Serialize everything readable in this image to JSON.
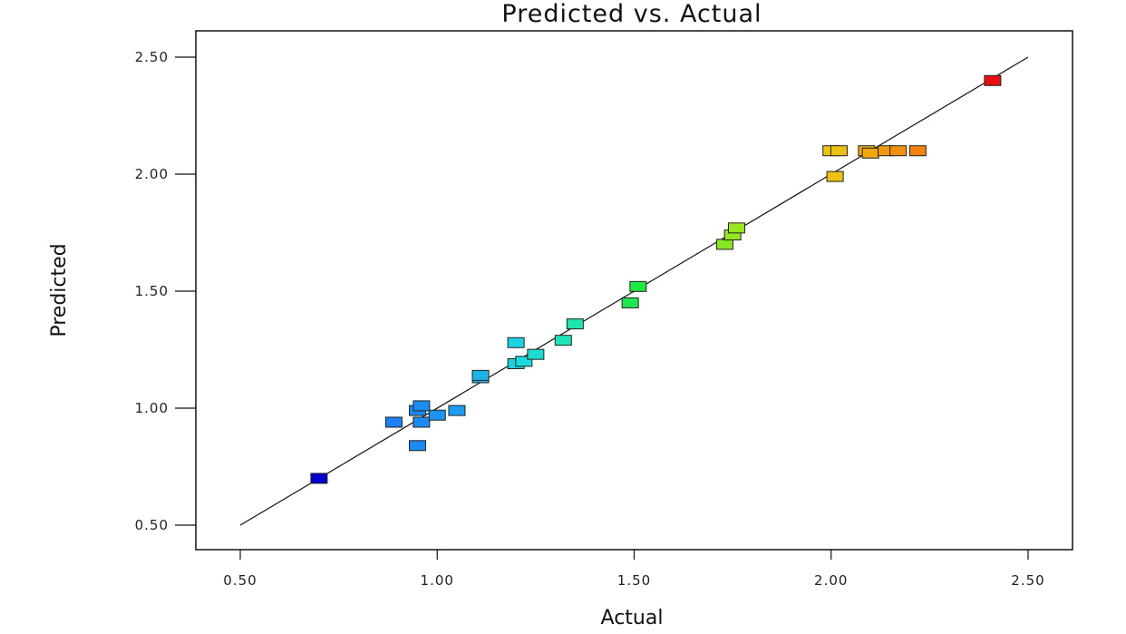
{
  "chart_data": {
    "type": "scatter",
    "title": "Predicted vs. Actual",
    "xlabel": "Actual",
    "ylabel": "Predicted",
    "xlim": [
      0.5,
      2.5
    ],
    "ylim": [
      0.5,
      2.5
    ],
    "xticks": [
      "0.50",
      "1.00",
      "1.50",
      "2.00",
      "2.50"
    ],
    "yticks": [
      "0.50",
      "1.00",
      "1.50",
      "2.00",
      "2.50"
    ],
    "reference_line": {
      "from": [
        0.5,
        0.5
      ],
      "to": [
        2.5,
        2.5
      ]
    },
    "grid": false,
    "color_scale": [
      "#0000cc",
      "#1e7df5",
      "#1c9af0",
      "#1ed8e0",
      "#22e6a0",
      "#1de620",
      "#88e620",
      "#e6e615",
      "#f0b010",
      "#f57a10",
      "#e61010"
    ],
    "points": [
      {
        "x": 0.7,
        "y": 0.7
      },
      {
        "x": 0.89,
        "y": 0.94
      },
      {
        "x": 0.95,
        "y": 0.84
      },
      {
        "x": 0.95,
        "y": 0.99
      },
      {
        "x": 0.96,
        "y": 1.01
      },
      {
        "x": 0.96,
        "y": 0.94
      },
      {
        "x": 1.0,
        "y": 0.97
      },
      {
        "x": 1.05,
        "y": 0.99
      },
      {
        "x": 1.11,
        "y": 1.13
      },
      {
        "x": 1.11,
        "y": 1.14
      },
      {
        "x": 1.2,
        "y": 1.19
      },
      {
        "x": 1.2,
        "y": 1.28
      },
      {
        "x": 1.22,
        "y": 1.2
      },
      {
        "x": 1.25,
        "y": 1.23
      },
      {
        "x": 1.32,
        "y": 1.29
      },
      {
        "x": 1.35,
        "y": 1.36
      },
      {
        "x": 1.49,
        "y": 1.45
      },
      {
        "x": 1.51,
        "y": 1.52
      },
      {
        "x": 1.73,
        "y": 1.7
      },
      {
        "x": 1.75,
        "y": 1.74
      },
      {
        "x": 1.76,
        "y": 1.77
      },
      {
        "x": 2.0,
        "y": 2.1
      },
      {
        "x": 2.01,
        "y": 1.99
      },
      {
        "x": 2.02,
        "y": 2.1
      },
      {
        "x": 2.09,
        "y": 2.1
      },
      {
        "x": 2.1,
        "y": 2.09
      },
      {
        "x": 2.14,
        "y": 2.1
      },
      {
        "x": 2.17,
        "y": 2.1
      },
      {
        "x": 2.22,
        "y": 2.1
      },
      {
        "x": 2.41,
        "y": 2.4
      }
    ]
  }
}
